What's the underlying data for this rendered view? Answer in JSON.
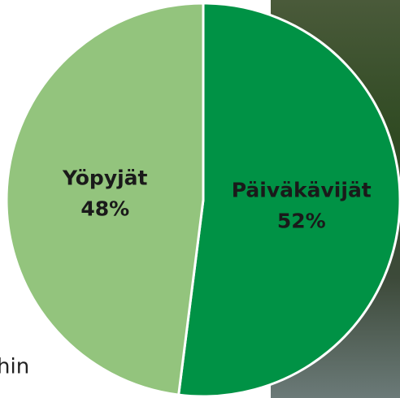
{
  "chart_data": {
    "type": "pie",
    "categories": [
      "Päiväkävijät",
      "Yöpyjät"
    ],
    "values": [
      52,
      48
    ],
    "value_labels": [
      "52%",
      "48%"
    ],
    "colors": [
      "#009245",
      "#93c47d"
    ],
    "start_angle": 0,
    "direction": "clockwise"
  },
  "background_text": "hin"
}
